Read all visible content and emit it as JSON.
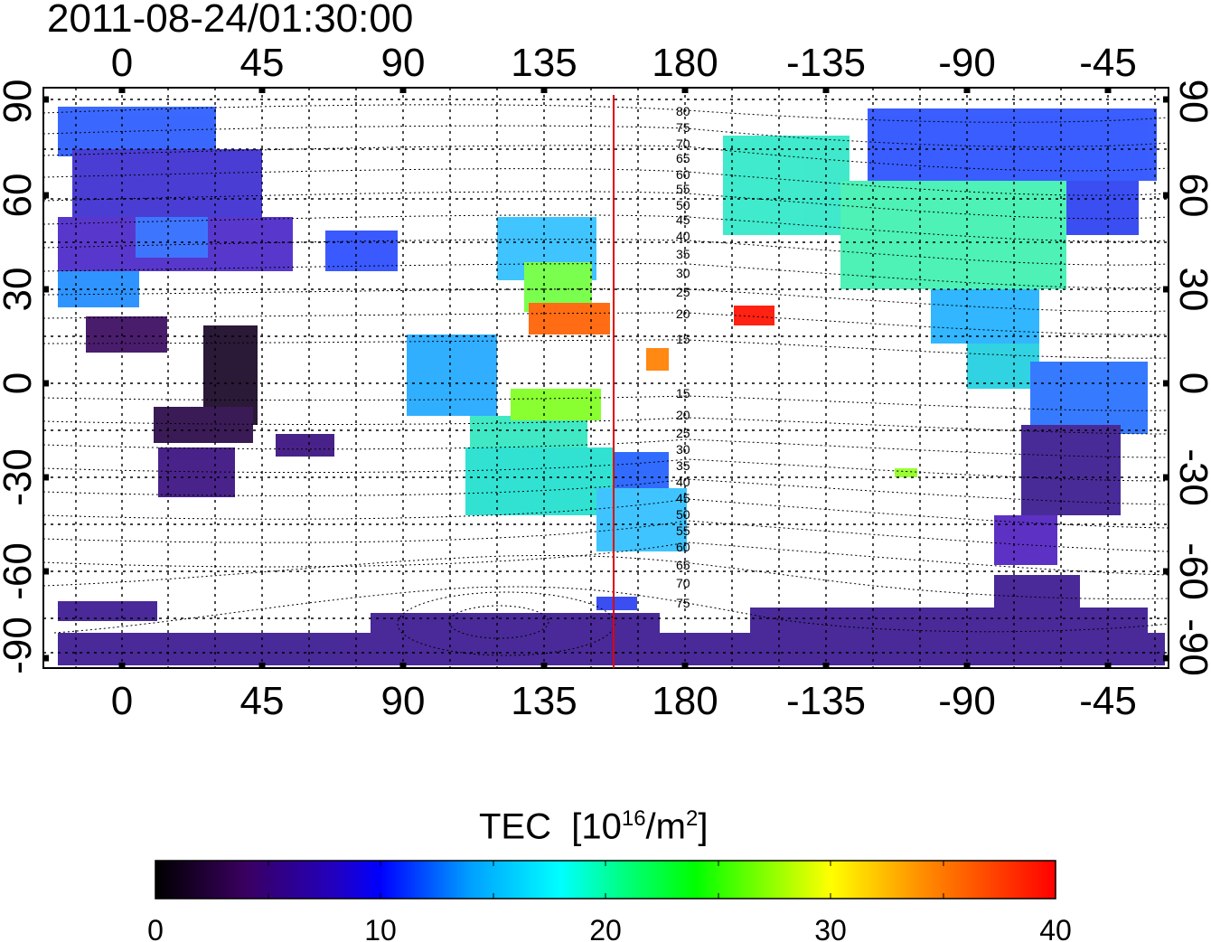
{
  "title": "2011-08-24/01:30:00",
  "map": {
    "top_lon_ticks": [
      "0",
      "45",
      "90",
      "135",
      "180",
      "-135",
      "-90",
      "-45"
    ],
    "bottom_lon_ticks": [
      "0",
      "45",
      "90",
      "135",
      "180",
      "-135",
      "-90",
      "-45"
    ],
    "left_lat_ticks": [
      "90",
      "60",
      "30",
      "0",
      "-30",
      "-60",
      "-90"
    ],
    "right_lat_ticks": [
      "90",
      "60",
      "30",
      "0",
      "-30",
      "-60",
      "-90"
    ],
    "contour_labels_north": [
      "80",
      "75",
      "70",
      "65",
      "60",
      "55",
      "50",
      "45",
      "40",
      "35",
      "30",
      "25",
      "20",
      "15"
    ],
    "contour_labels_south": [
      "15",
      "20",
      "25",
      "30",
      "35",
      "40",
      "45",
      "50",
      "55",
      "60",
      "65",
      "70",
      "75"
    ],
    "terminator_color": "#e00000"
  },
  "colorbar": {
    "label": "TEC",
    "unit_base": "[10",
    "unit_exp": "16",
    "unit_mid": "/m",
    "unit_exp2": "2",
    "unit_end": "]",
    "ticks": [
      "0",
      "10",
      "20",
      "30",
      "40"
    ],
    "min": 0,
    "max": 40,
    "colormap": [
      "#000000",
      "#3a0060",
      "#2200c0",
      "#0000ff",
      "#00a0ff",
      "#00ffff",
      "#00ff80",
      "#00ff00",
      "#ffff00",
      "#ff9000",
      "#ff0000"
    ]
  }
}
